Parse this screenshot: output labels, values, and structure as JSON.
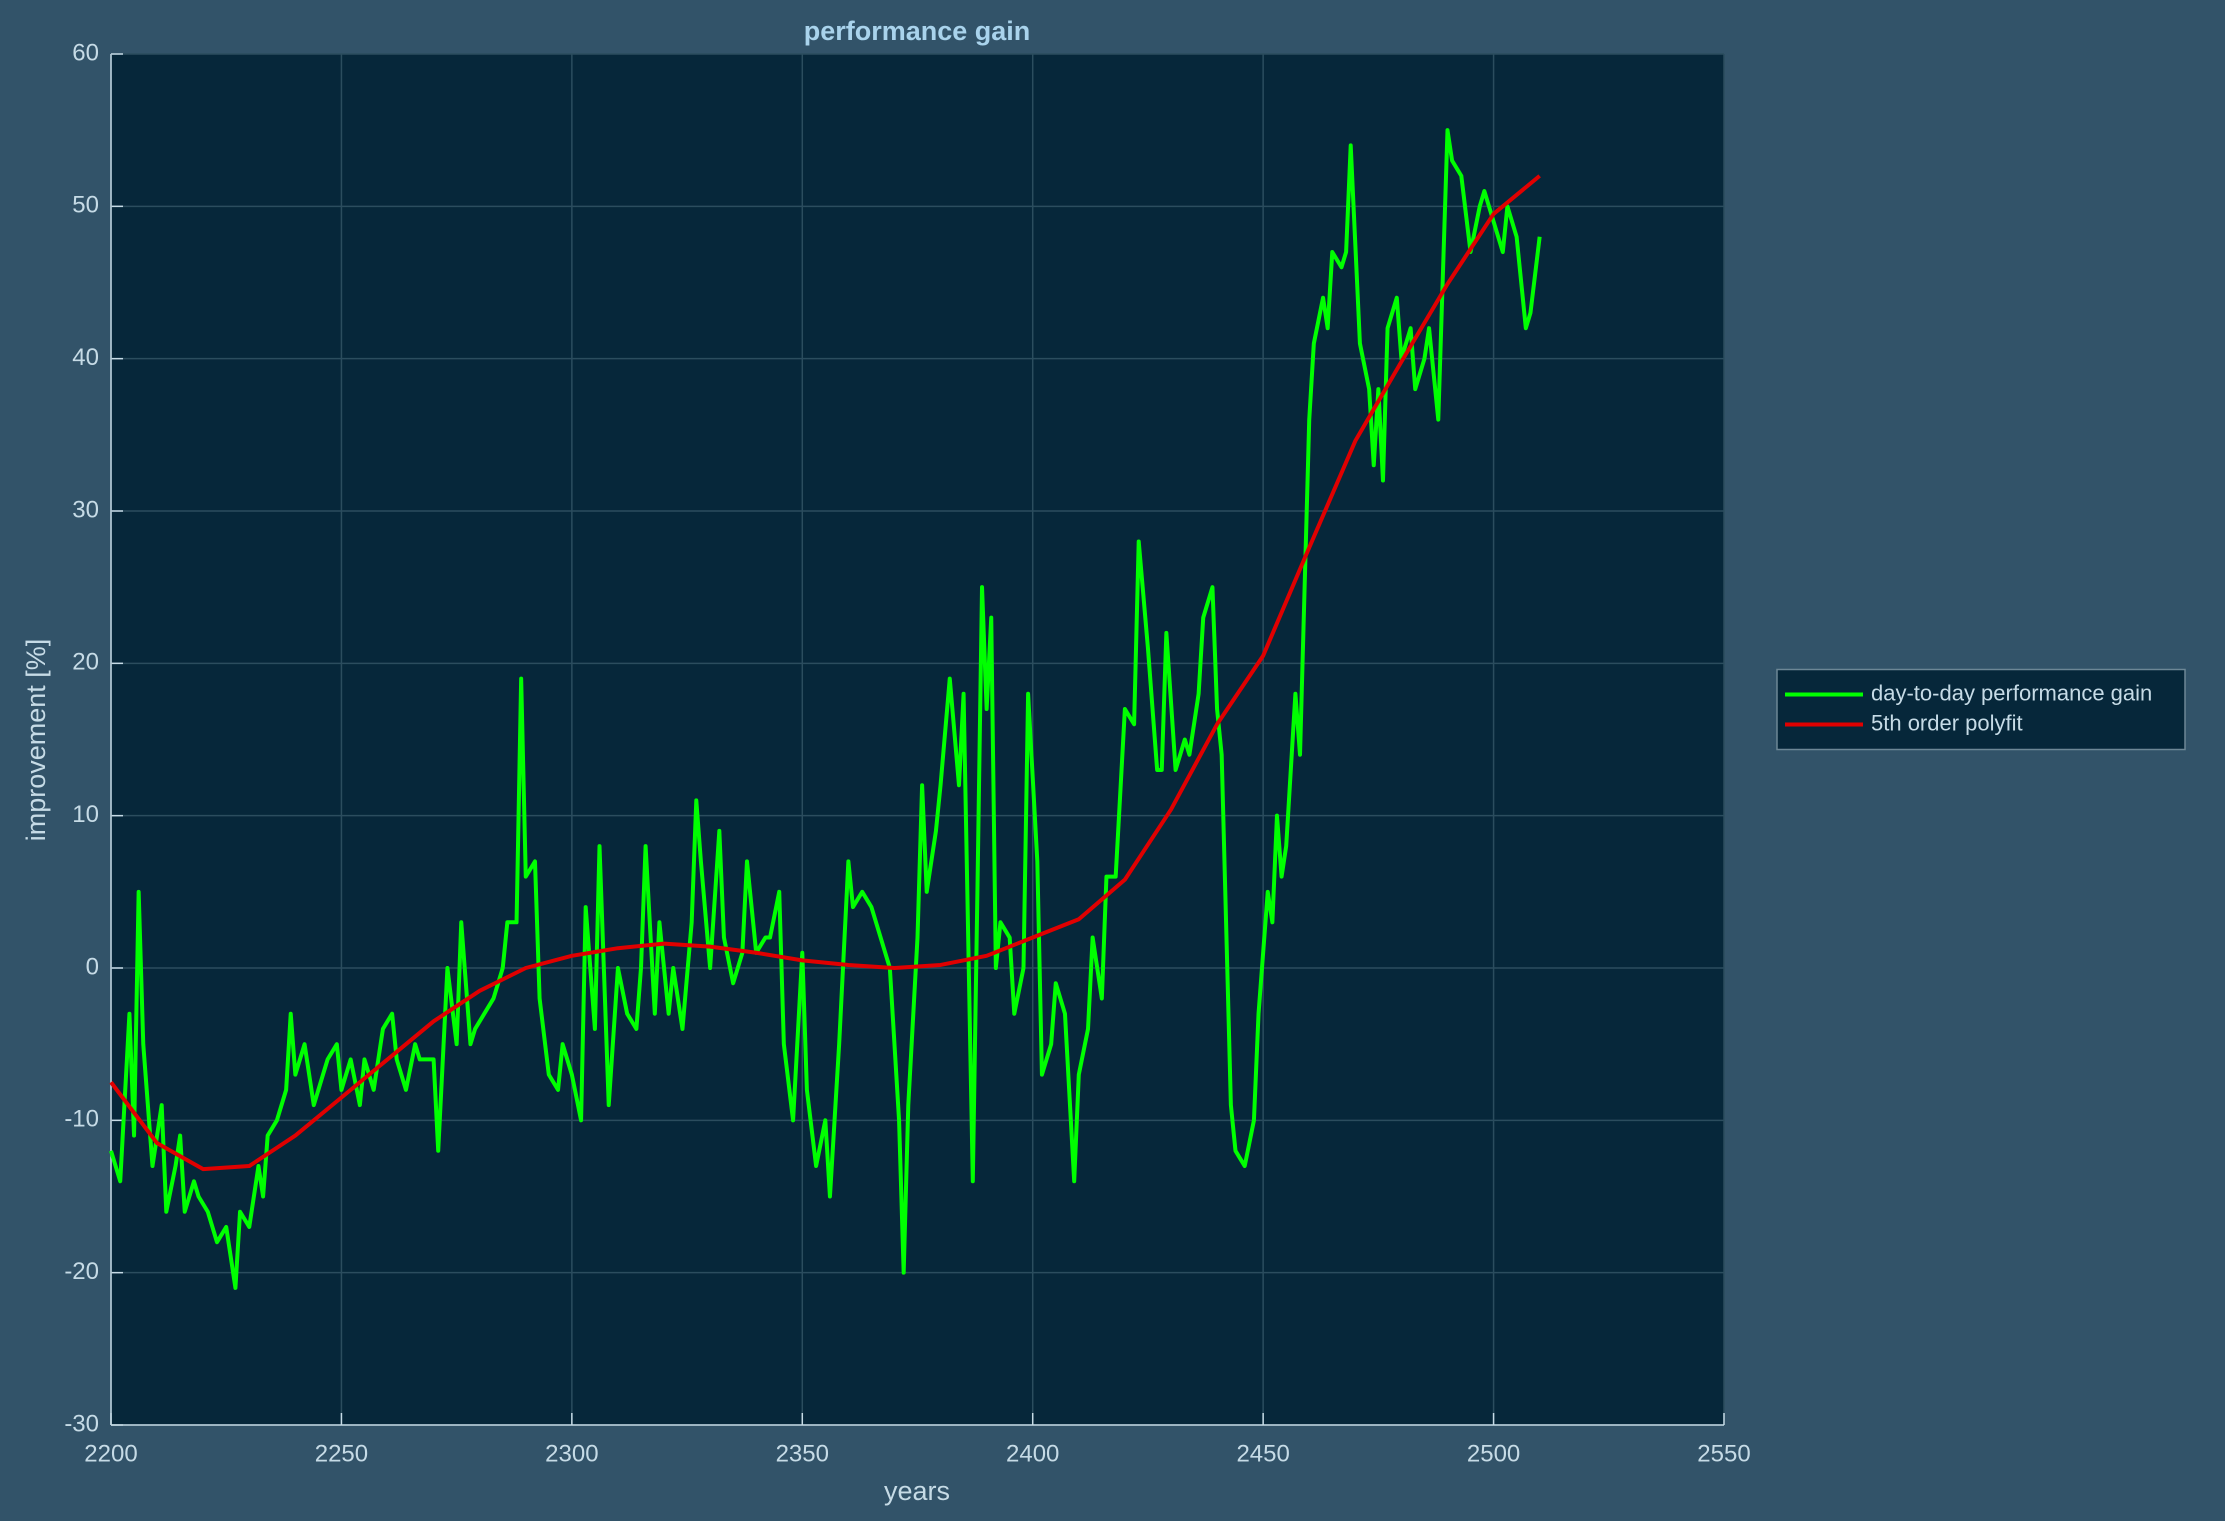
{
  "chart_data": {
    "type": "line",
    "title": "performance gain",
    "xlabel": "years",
    "ylabel": "improvement [%]",
    "xlim": [
      2200,
      2550
    ],
    "xticks": [
      2200,
      2250,
      2300,
      2350,
      2400,
      2450,
      2500,
      2550
    ],
    "ylim": [
      -30,
      60
    ],
    "yticks": [
      -30,
      -20,
      -10,
      0,
      10,
      20,
      30,
      40,
      50,
      60
    ],
    "grid": true,
    "legend": "east",
    "series": [
      {
        "name": "day-to-day performance gain",
        "color": "#00ff00",
        "x": [
          2200,
          2202,
          2204,
          2205,
          2206,
          2207,
          2209,
          2211,
          2212,
          2214,
          2215,
          2216,
          2218,
          2219,
          2221,
          2223,
          2225,
          2227,
          2228,
          2230,
          2232,
          2233,
          2234,
          2236,
          2238,
          2239,
          2240,
          2242,
          2244,
          2246,
          2247,
          2249,
          2250,
          2252,
          2254,
          2255,
          2257,
          2259,
          2261,
          2262,
          2264,
          2266,
          2267,
          2270,
          2271,
          2273,
          2275,
          2276,
          2278,
          2279,
          2281,
          2283,
          2285,
          2286,
          2288,
          2289,
          2290,
          2292,
          2293,
          2295,
          2297,
          2298,
          2300,
          2302,
          2303,
          2305,
          2306,
          2308,
          2310,
          2312,
          2314,
          2315,
          2316,
          2318,
          2319,
          2321,
          2322,
          2324,
          2326,
          2327,
          2328,
          2330,
          2332,
          2333,
          2335,
          2337,
          2338,
          2340,
          2342,
          2343,
          2345,
          2346,
          2348,
          2350,
          2351,
          2353,
          2355,
          2356,
          2358,
          2360,
          2361,
          2363,
          2365,
          2366,
          2368,
          2369,
          2371,
          2372,
          2373,
          2375,
          2376,
          2377,
          2379,
          2380,
          2382,
          2384,
          2385,
          2387,
          2388,
          2389,
          2390,
          2391,
          2392,
          2393,
          2395,
          2396,
          2398,
          2399,
          2401,
          2402,
          2404,
          2405,
          2407,
          2409,
          2410,
          2412,
          2413,
          2415,
          2416,
          2418,
          2420,
          2422,
          2423,
          2425,
          2427,
          2428,
          2429,
          2431,
          2433,
          2434,
          2436,
          2437,
          2439,
          2440,
          2441,
          2443,
          2444,
          2446,
          2448,
          2449,
          2451,
          2452,
          2453,
          2454,
          2455,
          2456,
          2457,
          2458,
          2460,
          2461,
          2463,
          2464,
          2465,
          2467,
          2468,
          2469,
          2471,
          2473,
          2474,
          2475,
          2476,
          2477,
          2479,
          2480,
          2482,
          2483,
          2485,
          2486,
          2488,
          2490,
          2491,
          2493,
          2495,
          2497,
          2498,
          2500,
          2502,
          2503,
          2505,
          2507,
          2508,
          2510
        ],
        "values": [
          -12,
          -14,
          -3,
          -11,
          5,
          -5,
          -13,
          -9,
          -16,
          -13,
          -11,
          -16,
          -14,
          -15,
          -16,
          -18,
          -17,
          -21,
          -16,
          -17,
          -13,
          -15,
          -11,
          -10,
          -8,
          -3,
          -7,
          -5,
          -9,
          -7,
          -6,
          -5,
          -8,
          -6,
          -9,
          -6,
          -8,
          -4,
          -3,
          -6,
          -8,
          -5,
          -6,
          -6,
          -12,
          0,
          -5,
          3,
          -5,
          -4,
          -3,
          -2,
          0,
          3,
          3,
          19,
          6,
          7,
          -2,
          -7,
          -8,
          -5,
          -7,
          -10,
          4,
          -4,
          8,
          -9,
          0,
          -3,
          -4,
          0,
          8,
          -3,
          3,
          -3,
          0,
          -4,
          3,
          11,
          7,
          0,
          9,
          2,
          -1,
          1,
          7,
          1,
          2,
          2,
          5,
          -5,
          -10,
          1,
          -8,
          -13,
          -10,
          -15,
          -5,
          7,
          4,
          5,
          4,
          3,
          1,
          0,
          -10,
          -20,
          -9,
          2,
          12,
          5,
          9,
          12,
          19,
          12,
          18,
          -14,
          5,
          25,
          17,
          23,
          0,
          3,
          2,
          -3,
          0,
          18,
          7,
          -7,
          -5,
          -1,
          -3,
          -14,
          -7,
          -4,
          2,
          -2,
          6,
          6,
          17,
          16,
          28,
          21,
          13,
          13,
          22,
          13,
          15,
          14,
          18,
          23,
          25,
          17,
          14,
          -9,
          -12,
          -13,
          -10,
          -3,
          5,
          3,
          10,
          6,
          8,
          13,
          18,
          14,
          36,
          41,
          44,
          42,
          47,
          46,
          47,
          54,
          41,
          38,
          33,
          38,
          32,
          42,
          44,
          40,
          42,
          38,
          40,
          42,
          36,
          55,
          53,
          52,
          47,
          50,
          51,
          49,
          47,
          50,
          48,
          42,
          43,
          48
        ]
      },
      {
        "name": "5th order polyfit",
        "color": "#e00000",
        "x": [
          2200,
          2210,
          2220,
          2230,
          2240,
          2250,
          2260,
          2270,
          2280,
          2290,
          2300,
          2310,
          2320,
          2330,
          2340,
          2350,
          2360,
          2370,
          2380,
          2390,
          2400,
          2410,
          2420,
          2430,
          2440,
          2450,
          2460,
          2470,
          2480,
          2490,
          2500,
          2510
        ],
        "values": [
          -7.5,
          -11.5,
          -13.2,
          -13,
          -11,
          -8.5,
          -6,
          -3.5,
          -1.5,
          0,
          0.8,
          1.3,
          1.6,
          1.4,
          1,
          0.5,
          0.2,
          0,
          0.2,
          0.8,
          2,
          3.2,
          5.8,
          10.4,
          16,
          20.5,
          27.6,
          34.6,
          39.8,
          44.9,
          49.5,
          52
        ]
      }
    ]
  }
}
